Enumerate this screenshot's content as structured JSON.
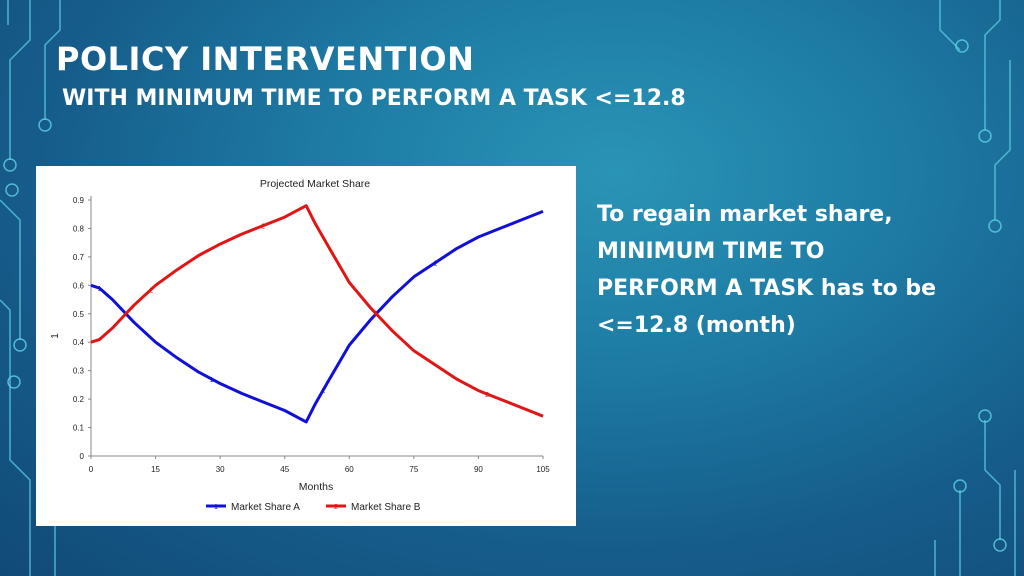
{
  "slide": {
    "title": "POLICY INTERVENTION",
    "subtitle": "WITH MINIMUM TIME TO PERFORM A TASK <=12.8",
    "note_lines": [
      "To regain market share,",
      "MINIMUM TIME TO",
      "PERFORM A TASK has to be",
      "<=12.8 (month)"
    ]
  },
  "colors": {
    "series_a": "#1010d8",
    "series_b": "#e01515",
    "decor_line": "#5fd3e6"
  },
  "chart_data": {
    "type": "line",
    "title": "Projected Market Share",
    "xlabel": "Months",
    "ylabel": "1",
    "xlim": [
      0,
      105
    ],
    "ylim": [
      0,
      0.9
    ],
    "xticks": [
      "0",
      "15",
      "30",
      "45",
      "60",
      "75",
      "90",
      "105"
    ],
    "yticks": [
      "0",
      "0.1",
      "0.2",
      "0.3",
      "0.4",
      "0.5",
      "0.6",
      "0.7",
      "0.8",
      "0.9"
    ],
    "grid": false,
    "legend_position": "bottom",
    "series": [
      {
        "name": "Market Share A",
        "marker": "1",
        "x": [
          0,
          2,
          5,
          10,
          15,
          20,
          25,
          30,
          35,
          40,
          45,
          50,
          52,
          55,
          60,
          65,
          70,
          75,
          80,
          85,
          90,
          95,
          100,
          105
        ],
        "values": [
          0.6,
          0.59,
          0.55,
          0.47,
          0.4,
          0.345,
          0.295,
          0.255,
          0.22,
          0.19,
          0.16,
          0.12,
          0.18,
          0.26,
          0.39,
          0.48,
          0.56,
          0.63,
          0.68,
          0.73,
          0.77,
          0.8,
          0.83,
          0.86
        ]
      },
      {
        "name": "Market Share B",
        "marker": "2",
        "x": [
          0,
          2,
          5,
          10,
          15,
          20,
          25,
          30,
          35,
          40,
          45,
          50,
          52,
          55,
          60,
          65,
          70,
          75,
          80,
          85,
          90,
          95,
          100,
          105
        ],
        "values": [
          0.4,
          0.41,
          0.45,
          0.53,
          0.6,
          0.655,
          0.705,
          0.745,
          0.78,
          0.81,
          0.84,
          0.88,
          0.82,
          0.74,
          0.61,
          0.52,
          0.44,
          0.37,
          0.32,
          0.27,
          0.23,
          0.2,
          0.17,
          0.14
        ]
      }
    ],
    "marker_positions": [
      {
        "series": 0,
        "x": 2
      },
      {
        "series": 0,
        "x": 28
      },
      {
        "series": 0,
        "x": 54
      },
      {
        "series": 0,
        "x": 80
      },
      {
        "series": 1,
        "x": 14
      },
      {
        "series": 1,
        "x": 40
      },
      {
        "series": 1,
        "x": 66
      },
      {
        "series": 1,
        "x": 92
      }
    ]
  }
}
